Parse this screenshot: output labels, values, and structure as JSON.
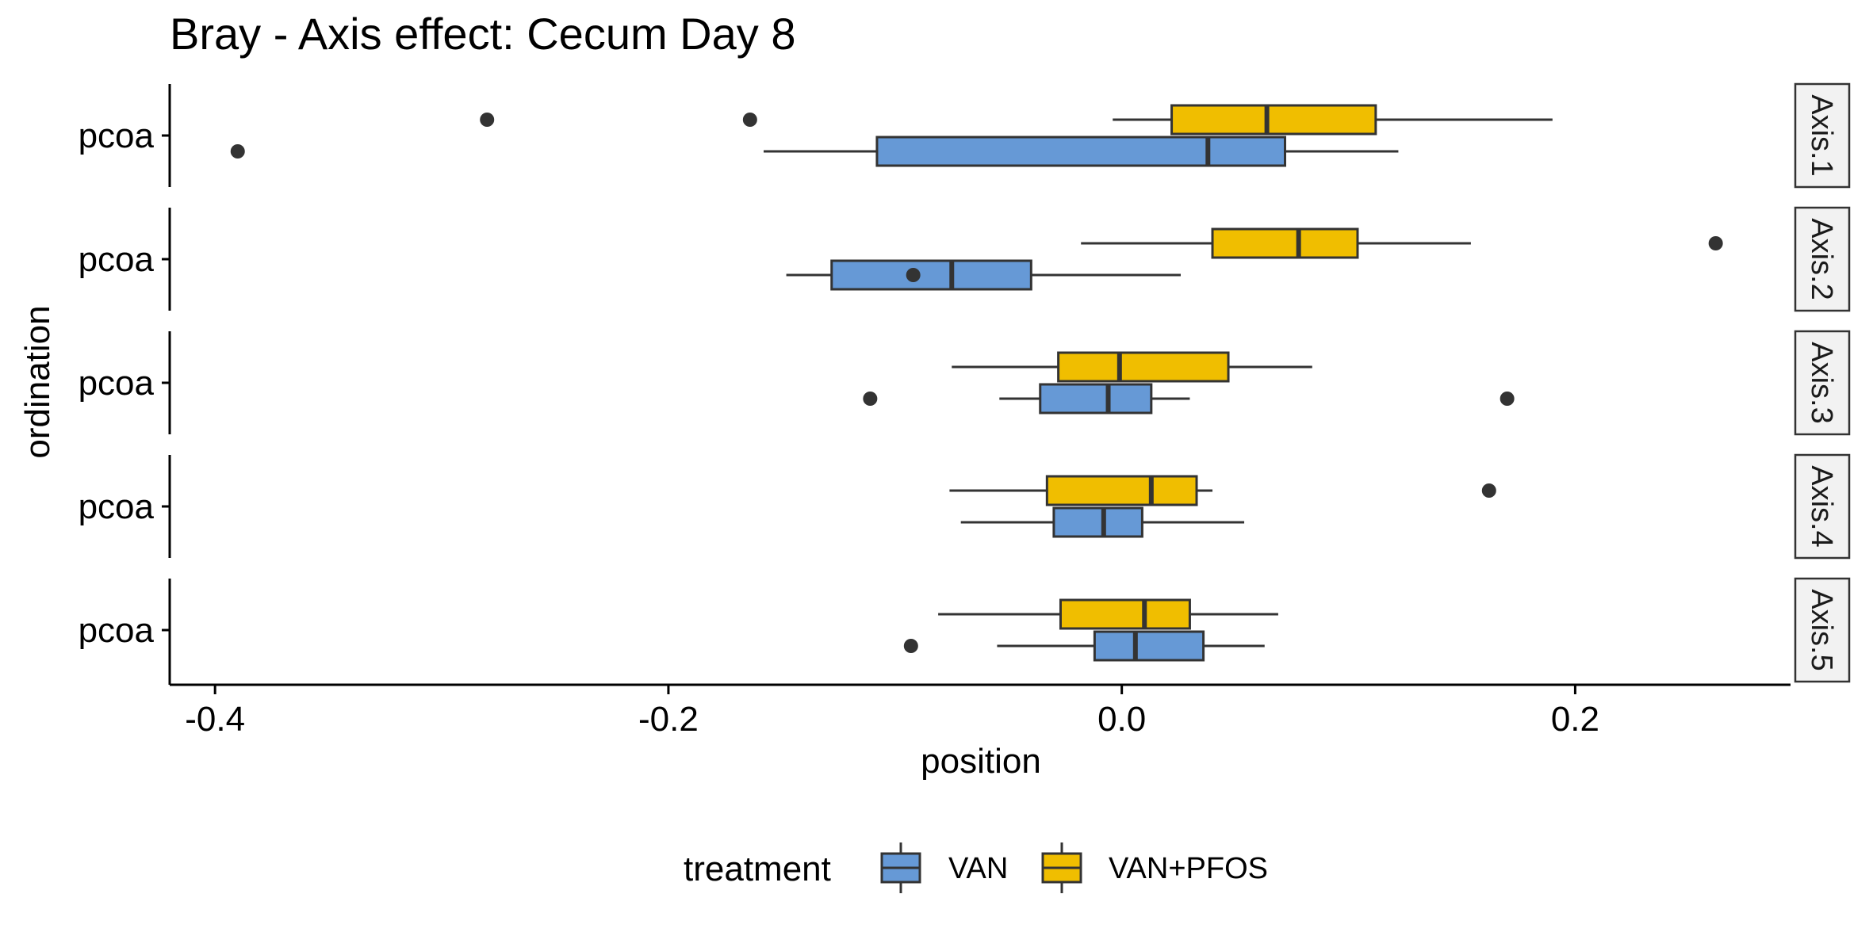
{
  "chart_data": {
    "type": "boxplot",
    "title": "Bray - Axis effect: Cecum Day 8",
    "xlabel": "position",
    "ylabel": "ordination",
    "xlim": [
      -0.42,
      0.295
    ],
    "x_ticks": [
      -0.4,
      -0.2,
      0.0,
      0.2
    ],
    "x_tick_labels": [
      "-0.4",
      "-0.2",
      "0.0",
      "0.2"
    ],
    "grid": false,
    "legend": {
      "title": "treatment",
      "position": "bottom",
      "entries": [
        {
          "name": "VAN",
          "color": "#6699D6"
        },
        {
          "name": "VAN+PFOS",
          "color": "#F0BE00"
        }
      ]
    },
    "facets": [
      {
        "strip": "Axis.1",
        "category": "pcoa",
        "boxes": [
          {
            "series": "VAN+PFOS",
            "min": -0.004,
            "q1": 0.022,
            "median": 0.064,
            "q3": 0.112,
            "max": 0.19,
            "outliers": [
              -0.28,
              -0.164
            ]
          },
          {
            "series": "VAN",
            "min": -0.158,
            "q1": -0.108,
            "median": 0.038,
            "q3": 0.072,
            "max": 0.122,
            "outliers": [
              -0.39
            ]
          }
        ]
      },
      {
        "strip": "Axis.2",
        "category": "pcoa",
        "boxes": [
          {
            "series": "VAN+PFOS",
            "min": -0.018,
            "q1": 0.04,
            "median": 0.078,
            "q3": 0.104,
            "max": 0.154,
            "outliers": [
              0.262
            ]
          },
          {
            "series": "VAN",
            "min": -0.148,
            "q1": -0.128,
            "median": -0.075,
            "q3": -0.04,
            "max": 0.026,
            "outliers": [
              -0.092
            ]
          }
        ]
      },
      {
        "strip": "Axis.3",
        "category": "pcoa",
        "boxes": [
          {
            "series": "VAN+PFOS",
            "min": -0.075,
            "q1": -0.028,
            "median": -0.001,
            "q3": 0.047,
            "max": 0.084,
            "outliers": []
          },
          {
            "series": "VAN",
            "min": -0.054,
            "q1": -0.036,
            "median": -0.006,
            "q3": 0.013,
            "max": 0.03,
            "outliers": [
              -0.111,
              0.17
            ]
          }
        ]
      },
      {
        "strip": "Axis.4",
        "category": "pcoa",
        "boxes": [
          {
            "series": "VAN+PFOS",
            "min": -0.076,
            "q1": -0.033,
            "median": 0.013,
            "q3": 0.033,
            "max": 0.04,
            "outliers": [
              0.162
            ]
          },
          {
            "series": "VAN",
            "min": -0.071,
            "q1": -0.03,
            "median": -0.008,
            "q3": 0.009,
            "max": 0.054,
            "outliers": []
          }
        ]
      },
      {
        "strip": "Axis.5",
        "category": "pcoa",
        "boxes": [
          {
            "series": "VAN+PFOS",
            "min": -0.081,
            "q1": -0.027,
            "median": 0.01,
            "q3": 0.03,
            "max": 0.069,
            "outliers": []
          },
          {
            "series": "VAN",
            "min": -0.055,
            "q1": -0.012,
            "median": 0.006,
            "q3": 0.036,
            "max": 0.063,
            "outliers": [
              -0.093
            ]
          }
        ]
      }
    ]
  }
}
